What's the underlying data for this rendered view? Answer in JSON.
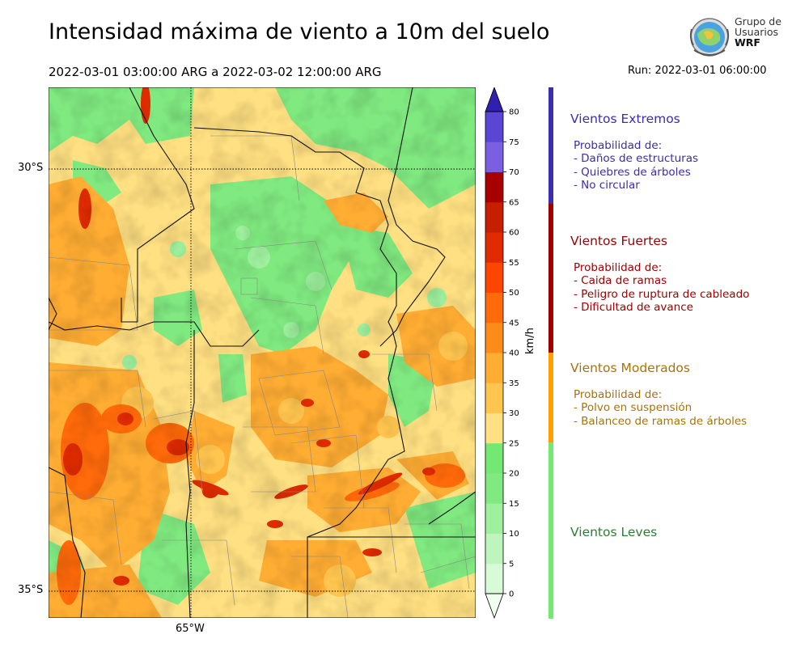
{
  "title": "Intensidad máxima de viento a 10m del suelo",
  "period": "2022-03-01 03:00:00 ARG  a  2022-03-02 12:00:00 ARG",
  "run": "Run: 2022-03-01 06:00:00",
  "logo": {
    "line1": "Grupo de",
    "line2": "Usuarios",
    "line3": "WRF"
  },
  "map": {
    "lat_labels": [
      "30°S",
      "35°S"
    ],
    "lon_labels": [
      "65°W"
    ]
  },
  "colorbar": {
    "unit": "km/h",
    "ticks": [
      "0",
      "5",
      "10",
      "15",
      "20",
      "25",
      "30",
      "35",
      "40",
      "45",
      "50",
      "55",
      "60",
      "65",
      "70",
      "75",
      "80"
    ],
    "colors": [
      "#f0fff0",
      "#d7fad7",
      "#bdf5bd",
      "#9ef09e",
      "#80ea80",
      "#73e873",
      "#ffe082",
      "#ffc54f",
      "#ffad33",
      "#ff8c1a",
      "#ff6a0a",
      "#ff4500",
      "#e02b00",
      "#c81e00",
      "#a80000",
      "#7a5fe0",
      "#5a45d4",
      "#4030c4",
      "#3020b0"
    ]
  },
  "categories": [
    {
      "title": "Vientos Extremos",
      "color": "#3b2db0",
      "bar_color": "#3b2db0",
      "desc": "Probabilidad de:\n- Daños de estructuras\n- Quiebres de árboles\n- No circular"
    },
    {
      "title": "Vientos Fuertes",
      "color": "#a00000",
      "bar_color": "#a00000",
      "desc": "Probabilidad de:\n- Caida de ramas\n- Peligro de ruptura de cableado\n- Dificultad de avance"
    },
    {
      "title": "Vientos Moderados",
      "color": "#a8720c",
      "bar_color": "#ffa000",
      "desc": "Probabilidad de:\n- Polvo en suspensión\n- Balanceo de ramas de árboles"
    },
    {
      "title": "Vientos Leves",
      "color": "#2e7d32",
      "bar_color": "#73e873",
      "desc": ""
    }
  ]
}
